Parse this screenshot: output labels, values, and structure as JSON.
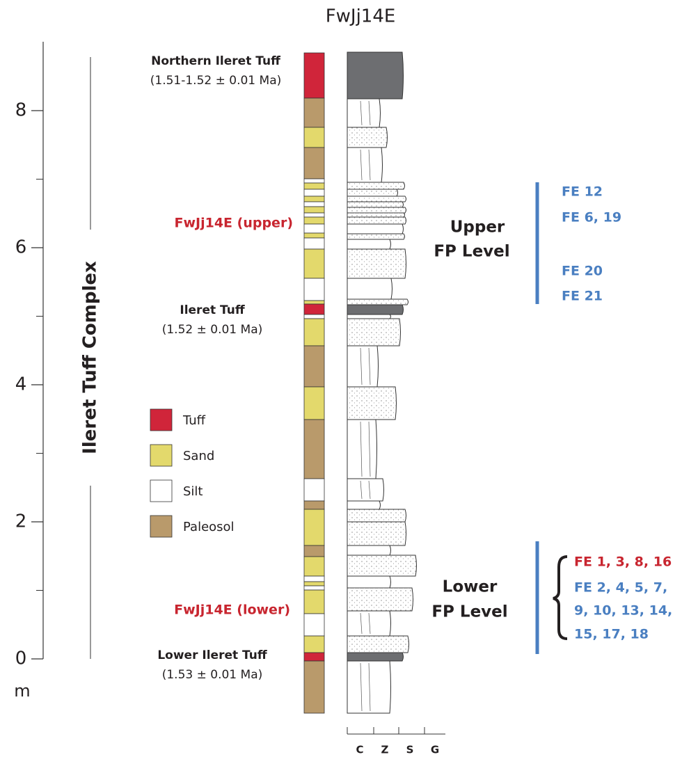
{
  "title": "FwJj14E",
  "axis": {
    "ticks": [
      0,
      2,
      4,
      6,
      8
    ],
    "unit": "m"
  },
  "complex_label": "Ileret Tuff Complex",
  "legend": [
    {
      "label": "Tuff",
      "color": "#d0253a"
    },
    {
      "label": "Sand",
      "color": "#e3d96c"
    },
    {
      "label": "Silt",
      "color": "#ffffff"
    },
    {
      "label": "Paleosol",
      "color": "#b99a6b"
    }
  ],
  "tuffs": [
    {
      "name": "Northern Ileret Tuff",
      "age": "(1.51-1.52 ± 0.01 Ma)"
    },
    {
      "name": "Ileret Tuff",
      "age": "(1.52 ± 0.01 Ma)"
    },
    {
      "name": "Lower Ileret Tuff",
      "age": "(1.53 ± 0.01 Ma)"
    }
  ],
  "sites": {
    "upper": "FwJj14E (upper)",
    "lower": "FwJj14E (lower)"
  },
  "levels": {
    "upper": {
      "line1": "Upper",
      "line2": "FP  Level",
      "features": [
        "FE 12",
        "FE 6, 19",
        "FE 20",
        "FE 21"
      ]
    },
    "lower": {
      "line1": "Lower",
      "line2": "FP Level",
      "highlight": "FE 1, 3, 8, 16",
      "features": [
        "FE 2, 4, 5, 7,",
        "9, 10, 13, 14,",
        "15, 17, 18"
      ]
    }
  },
  "grain_scale": [
    "C",
    "Z",
    "S",
    "G"
  ]
}
